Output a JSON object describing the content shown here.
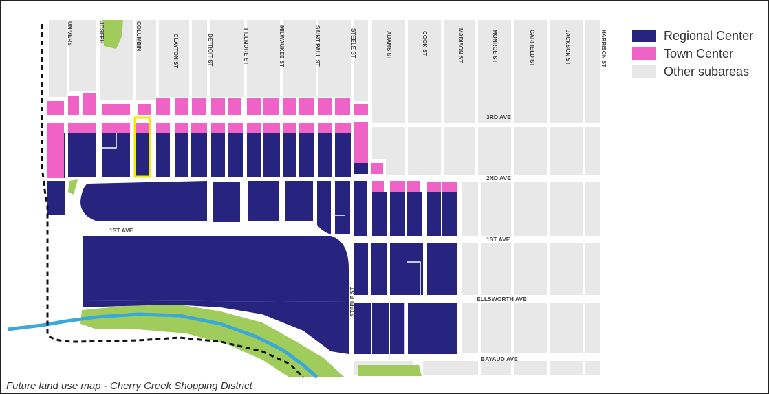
{
  "colors": {
    "regional_center": "#26247f",
    "town_center": "#ef62c6",
    "other_subareas": "#e8e8e8",
    "park": "#9fcc5a",
    "creek": "#3aa8d8",
    "highlight": "#f2ea00",
    "boundary": "#111111"
  },
  "legend": {
    "regional_center": "Regional Center",
    "town_center": "Town Center",
    "other_subareas": "Other subareas"
  },
  "streets": {
    "university": "UNIVERS",
    "josephine": "JOSEPH",
    "columbine": "COLUMBIN",
    "clayton": "CLAYTON ST",
    "detroit": "DETROIT ST",
    "fillmore": "FILLMORE ST",
    "milwaukee": "MILWAUKEE ST",
    "saint_paul": "SAINT PAUL ST",
    "steele": "STEELE ST",
    "adams": "ADAMS ST",
    "cook": "COOK ST",
    "madison": "MADISON ST",
    "monroe": "MONROE ST",
    "garfield": "GARFIELD ST",
    "jackson": "JACKSON ST",
    "harrison": "HARRISON ST",
    "steele_lower": "STEELE ST",
    "third_ave": "3RD AVE",
    "second_ave": "2ND AVE",
    "first_ave_west": "1ST AVE",
    "first_ave_east": "1ST AVE",
    "ellsworth": "ELLSWORTH AVE",
    "bayaud": "BAYAUD AVE"
  },
  "caption": "Future land use map - Cherry Creek Shopping District"
}
